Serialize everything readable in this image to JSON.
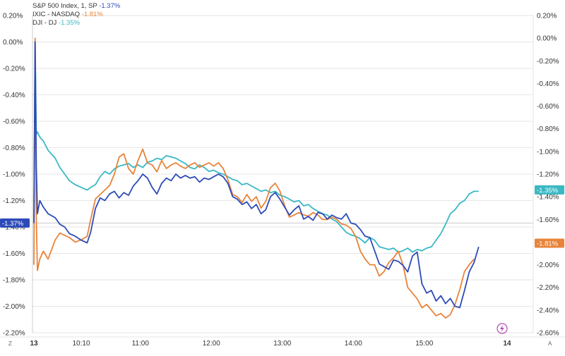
{
  "chart_data": {
    "type": "line",
    "legend_placement": "top-left",
    "grid": "horizontal",
    "x_ticks": [
      "13",
      "10:10",
      "11:00",
      "12:00",
      "13:00",
      "14:00",
      "15:00",
      "14"
    ],
    "x_tick_values": [
      0,
      40,
      90,
      150,
      210,
      270,
      330,
      400
    ],
    "xlim": [
      0,
      400
    ],
    "y_left": {
      "ticks": [
        "0.20%",
        "0.00%",
        "-0.20%",
        "-0.40%",
        "-0.60%",
        "-0.80%",
        "-1.00%",
        "-1.20%",
        "-1.40%",
        "-1.60%",
        "-1.80%",
        "-2.00%",
        "-2.20%"
      ],
      "tick_values": [
        0.2,
        0.0,
        -0.2,
        -0.4,
        -0.6,
        -0.8,
        -1.0,
        -1.2,
        -1.4,
        -1.6,
        -1.8,
        -2.0,
        -2.2
      ],
      "lim": [
        -2.2,
        0.2
      ]
    },
    "y_right": {
      "ticks": [
        "0.20%",
        "0.00%",
        "-0.20%",
        "-0.40%",
        "-0.60%",
        "-0.80%",
        "-1.00%",
        "-1.20%",
        "-1.40%",
        "-1.60%",
        "-1.80%",
        "-2.00%",
        "-2.20%",
        "-2.40%",
        "-2.60%"
      ],
      "tick_values": [
        0.2,
        0.0,
        -0.2,
        -0.4,
        -0.6,
        -0.8,
        -1.0,
        -1.2,
        -1.4,
        -1.6,
        -1.8,
        -2.0,
        -2.2,
        -2.4,
        -2.6
      ],
      "lim": [
        -2.6,
        0.2
      ]
    },
    "series": [
      {
        "name": "S&P 500 Index, 1, SP",
        "value_label": "-1.37%",
        "color": "#2d4bb8",
        "axis": "left",
        "x": [
          0,
          1,
          2,
          3,
          5,
          8,
          12,
          18,
          22,
          26,
          30,
          35,
          40,
          45,
          48,
          52,
          56,
          60,
          64,
          68,
          72,
          76,
          80,
          84,
          88,
          92,
          96,
          100,
          104,
          108,
          112,
          116,
          120,
          124,
          128,
          132,
          136,
          140,
          144,
          148,
          152,
          156,
          160,
          164,
          168,
          172,
          176,
          180,
          184,
          188,
          192,
          196,
          200,
          204,
          208,
          212,
          216,
          220,
          224,
          228,
          232,
          236,
          240,
          244,
          248,
          252,
          256,
          260,
          264,
          268,
          272,
          276,
          280,
          284,
          288,
          292,
          296,
          300,
          304,
          308,
          312,
          316,
          320,
          324,
          328,
          332,
          336,
          340,
          344,
          348,
          352,
          356,
          360,
          364,
          368,
          372,
          376
        ],
        "values": [
          -1.37,
          0.0,
          -0.95,
          -1.3,
          -1.2,
          -1.25,
          -1.3,
          -1.33,
          -1.38,
          -1.4,
          -1.45,
          -1.47,
          -1.5,
          -1.52,
          -1.44,
          -1.26,
          -1.18,
          -1.2,
          -1.15,
          -1.13,
          -1.18,
          -1.14,
          -1.16,
          -1.09,
          -1.05,
          -1.0,
          -1.03,
          -1.1,
          -1.15,
          -1.07,
          -1.03,
          -1.05,
          -1.0,
          -1.03,
          -1.01,
          -1.03,
          -1.02,
          -1.06,
          -1.03,
          -1.04,
          -1.02,
          -1.0,
          -1.02,
          -1.07,
          -1.17,
          -1.19,
          -1.23,
          -1.21,
          -1.26,
          -1.23,
          -1.3,
          -1.27,
          -1.17,
          -1.14,
          -1.19,
          -1.25,
          -1.31,
          -1.27,
          -1.24,
          -1.34,
          -1.32,
          -1.35,
          -1.29,
          -1.3,
          -1.34,
          -1.31,
          -1.33,
          -1.34,
          -1.3,
          -1.37,
          -1.38,
          -1.42,
          -1.47,
          -1.48,
          -1.58,
          -1.68,
          -1.7,
          -1.72,
          -1.65,
          -1.66,
          -1.69,
          -1.74,
          -1.62,
          -1.59,
          -1.83,
          -1.9,
          -1.88,
          -1.96,
          -1.92,
          -1.98,
          -1.94,
          -2.0,
          -2.01,
          -1.88,
          -1.74,
          -1.67,
          -1.55
        ]
      },
      {
        "name": "IXIC - NASDAQ",
        "value_label": "-1.81%",
        "color": "#e8843a",
        "axis": "right",
        "x": [
          0,
          1,
          2,
          3,
          5,
          8,
          12,
          18,
          22,
          26,
          30,
          35,
          40,
          45,
          48,
          52,
          56,
          60,
          64,
          68,
          72,
          76,
          80,
          84,
          88,
          92,
          96,
          100,
          104,
          108,
          112,
          116,
          120,
          124,
          128,
          132,
          136,
          140,
          144,
          148,
          152,
          156,
          160,
          164,
          168,
          172,
          176,
          180,
          184,
          188,
          192,
          196,
          200,
          204,
          208,
          212,
          216,
          220,
          224,
          228,
          232,
          236,
          240,
          244,
          248,
          252,
          256,
          260,
          264,
          268,
          272,
          276,
          280,
          284,
          288,
          292,
          296,
          300,
          304,
          308,
          312,
          316,
          320,
          324,
          328,
          332,
          336,
          340,
          344,
          348,
          352,
          356,
          360,
          364,
          368,
          372
        ],
        "values": [
          -2.0,
          0.0,
          -1.6,
          -2.05,
          -1.95,
          -1.88,
          -1.95,
          -1.78,
          -1.72,
          -1.74,
          -1.76,
          -1.8,
          -1.78,
          -1.75,
          -1.6,
          -1.42,
          -1.38,
          -1.34,
          -1.3,
          -1.2,
          -1.05,
          -1.02,
          -1.15,
          -1.2,
          -1.08,
          -0.98,
          -1.1,
          -1.12,
          -1.18,
          -1.08,
          -1.15,
          -1.12,
          -1.1,
          -1.13,
          -1.15,
          -1.12,
          -1.1,
          -1.14,
          -1.12,
          -1.1,
          -1.13,
          -1.1,
          -1.15,
          -1.25,
          -1.38,
          -1.4,
          -1.45,
          -1.38,
          -1.44,
          -1.4,
          -1.5,
          -1.44,
          -1.32,
          -1.28,
          -1.35,
          -1.48,
          -1.58,
          -1.56,
          -1.54,
          -1.56,
          -1.57,
          -1.54,
          -1.56,
          -1.6,
          -1.6,
          -1.58,
          -1.6,
          -1.64,
          -1.65,
          -1.68,
          -1.75,
          -1.88,
          -1.95,
          -2.0,
          -2.0,
          -2.1,
          -2.06,
          -1.98,
          -1.94,
          -1.88,
          -2.0,
          -2.2,
          -2.25,
          -2.3,
          -2.38,
          -2.35,
          -2.4,
          -2.45,
          -2.43,
          -2.47,
          -2.44,
          -2.35,
          -2.22,
          -2.06,
          -2.0,
          -1.95
        ]
      },
      {
        "name": "DJI - DJ",
        "value_label": "-1.35%",
        "color": "#3ab8c4",
        "axis": "left",
        "x": [
          0,
          1,
          2,
          3,
          5,
          8,
          12,
          18,
          22,
          26,
          30,
          35,
          40,
          45,
          48,
          52,
          56,
          60,
          64,
          68,
          72,
          76,
          80,
          84,
          88,
          92,
          96,
          100,
          104,
          108,
          112,
          116,
          120,
          124,
          128,
          132,
          136,
          140,
          144,
          148,
          152,
          156,
          160,
          164,
          168,
          172,
          176,
          180,
          184,
          188,
          192,
          196,
          200,
          204,
          208,
          212,
          216,
          220,
          224,
          228,
          232,
          236,
          240,
          244,
          248,
          252,
          256,
          260,
          264,
          268,
          272,
          276,
          280,
          284,
          288,
          292,
          296,
          300,
          304,
          308,
          312,
          316,
          320,
          324,
          328,
          332,
          336,
          340,
          344,
          348,
          352,
          356,
          360,
          364,
          368,
          372,
          376
        ],
        "values": [
          -1.37,
          0.0,
          -0.7,
          -0.68,
          -0.72,
          -0.75,
          -0.82,
          -0.88,
          -0.95,
          -1.0,
          -1.05,
          -1.08,
          -1.1,
          -1.12,
          -1.1,
          -1.08,
          -1.02,
          -0.98,
          -1.0,
          -0.96,
          -0.94,
          -0.93,
          -0.92,
          -0.95,
          -0.93,
          -0.95,
          -0.91,
          -0.9,
          -0.88,
          -0.89,
          -0.86,
          -0.87,
          -0.88,
          -0.9,
          -0.92,
          -0.95,
          -0.96,
          -0.93,
          -0.95,
          -0.98,
          -0.97,
          -0.99,
          -1.0,
          -1.02,
          -1.04,
          -1.05,
          -1.08,
          -1.07,
          -1.09,
          -1.11,
          -1.13,
          -1.12,
          -1.14,
          -1.13,
          -1.16,
          -1.17,
          -1.19,
          -1.21,
          -1.2,
          -1.24,
          -1.23,
          -1.26,
          -1.28,
          -1.3,
          -1.31,
          -1.34,
          -1.36,
          -1.4,
          -1.44,
          -1.46,
          -1.47,
          -1.49,
          -1.52,
          -1.48,
          -1.5,
          -1.55,
          -1.56,
          -1.57,
          -1.56,
          -1.59,
          -1.58,
          -1.56,
          -1.59,
          -1.57,
          -1.58,
          -1.56,
          -1.55,
          -1.5,
          -1.45,
          -1.38,
          -1.3,
          -1.27,
          -1.22,
          -1.2,
          -1.15,
          -1.13,
          -1.13
        ]
      }
    ],
    "bottom_left_label": "Z",
    "bottom_right_label": "A"
  }
}
